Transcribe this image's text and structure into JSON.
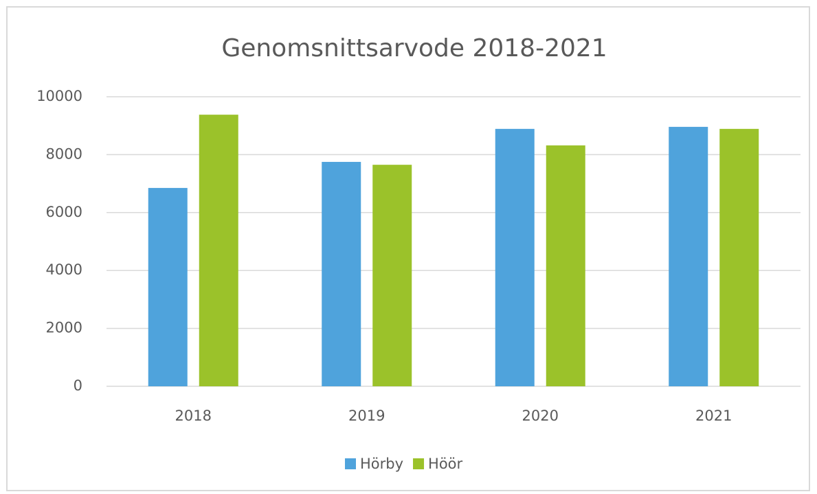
{
  "chart_data": {
    "type": "bar",
    "title": "Genomsnittsarvode 2018-2021",
    "categories": [
      "2018",
      "2019",
      "2020",
      "2021"
    ],
    "series": [
      {
        "name": "Hörby",
        "color": "#4fa3dc",
        "values": [
          6850,
          7750,
          8890,
          8960
        ]
      },
      {
        "name": "Höör",
        "color": "#9bc22a",
        "values": [
          9380,
          7650,
          8320,
          8890
        ]
      }
    ],
    "ylim": [
      0,
      10000
    ],
    "yticks": [
      0,
      2000,
      4000,
      6000,
      8000,
      10000
    ],
    "grid": true,
    "legend": "bottom"
  }
}
